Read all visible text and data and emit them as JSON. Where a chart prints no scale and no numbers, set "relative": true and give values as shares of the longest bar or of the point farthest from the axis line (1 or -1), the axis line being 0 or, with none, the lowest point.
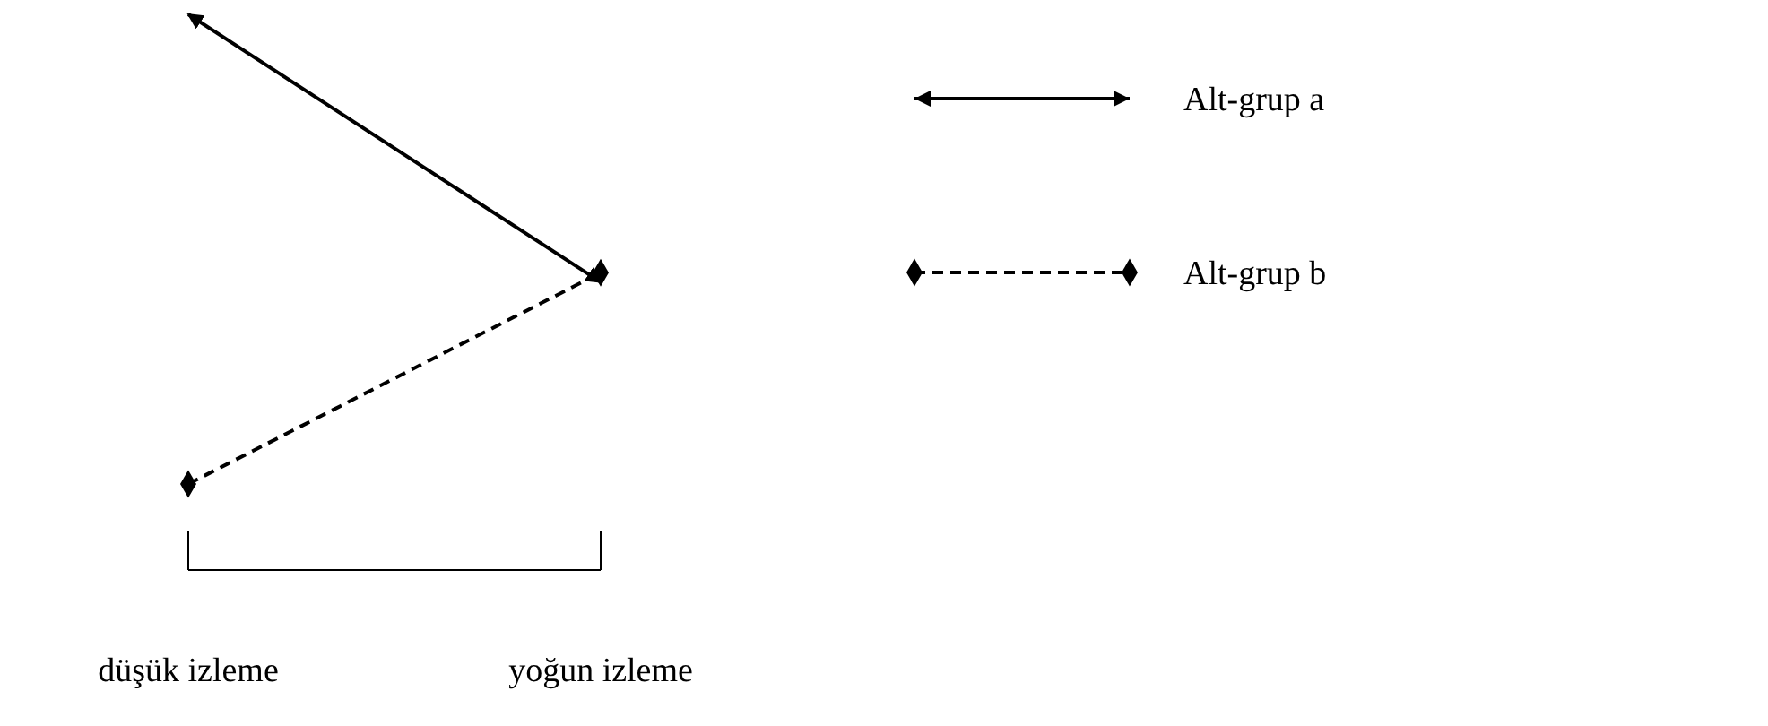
{
  "chart_data": {
    "type": "line",
    "relative": true,
    "categories": [
      "düşük izleme",
      "yoğun izleme"
    ],
    "series": [
      {
        "name": "Alt-grup a",
        "color": "#000000",
        "values": [
          1,
          0.43
        ],
        "marker": "none",
        "line_style": "solid"
      },
      {
        "name": "Alt-grup b",
        "color": "#000000",
        "values": [
          0,
          0.45
        ],
        "marker": "diamond",
        "line_style": "dashed"
      }
    ],
    "legend": "top right",
    "grid": false
  }
}
